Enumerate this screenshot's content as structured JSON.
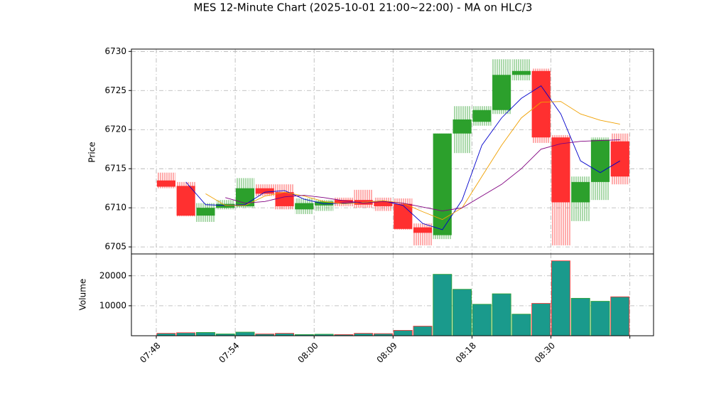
{
  "chart_data": {
    "type": "candlestick",
    "title": "MES 12-Minute Chart (2025-10-01 21:00~22:00) - MA on HLC/3",
    "ylabel": "Price",
    "volume_label": "Volume",
    "up_color": "#2ca02c",
    "down_color": "#ff3030",
    "volume_color": "#1a9a8c",
    "grid": true,
    "open": [
      6713.5,
      6712.8,
      6709.0,
      6710.0,
      6710.2,
      6712.5,
      6712.0,
      6709.8,
      6710.3,
      6711.0,
      6711.0,
      6710.8,
      6710.5,
      6707.5,
      6706.5,
      6719.5,
      6721.0,
      6722.5,
      6727.0,
      6727.5,
      6719.0,
      6710.7,
      6713.3,
      6718.5
    ],
    "high": [
      6714.5,
      6713.3,
      6710.6,
      6711.0,
      6713.8,
      6713.0,
      6713.0,
      6711.2,
      6711.0,
      6711.3,
      6712.3,
      6711.3,
      6711.2,
      6708.0,
      6719.5,
      6723.0,
      6723.0,
      6729.0,
      6729.0,
      6727.8,
      6719.3,
      6714.0,
      6719.0,
      6719.5
    ],
    "low": [
      6712.5,
      6708.9,
      6708.2,
      6709.8,
      6710.0,
      6711.5,
      6709.8,
      6709.2,
      6709.6,
      6710.2,
      6710.0,
      6709.6,
      6707.2,
      6705.2,
      6706.0,
      6717.0,
      6720.5,
      6722.0,
      6726.3,
      6718.3,
      6705.2,
      6708.3,
      6711.0,
      6713.0
    ],
    "close": [
      6712.7,
      6709.0,
      6710.0,
      6710.5,
      6712.5,
      6711.8,
      6710.2,
      6710.6,
      6710.8,
      6710.6,
      6710.4,
      6710.2,
      6707.3,
      6706.8,
      6719.5,
      6721.3,
      6722.5,
      6727.0,
      6727.5,
      6719.0,
      6710.7,
      6713.3,
      6718.7,
      6714.0
    ],
    "volume": [
      800,
      1000,
      1100,
      600,
      1200,
      600,
      800,
      400,
      500,
      400,
      800,
      700,
      1800,
      3200,
      20500,
      15500,
      10500,
      14000,
      7200,
      10800,
      25000,
      12500,
      11500,
      13000
    ],
    "series": [
      {
        "color": "#0000cc",
        "values": [
          null,
          6713.3,
          6710.4,
          6710.3,
          6710.4,
          6712.0,
          6712.2,
          6711.1,
          6710.5,
          6710.6,
          6710.7,
          6710.9,
          6710.3,
          6708.0,
          6707.2,
          6711.0,
          6718.0,
          6721.5,
          6724.0,
          6725.6,
          6722.0,
          6716.0,
          6714.5,
          6716.0
        ]
      },
      {
        "color": "#f0a000",
        "values": [
          null,
          null,
          6711.8,
          6710.3,
          6710.3,
          6711.5,
          6712.0,
          6711.5,
          6710.8,
          6710.5,
          6710.7,
          6710.9,
          6710.6,
          6709.5,
          6708.5,
          6710.0,
          6714.0,
          6718.0,
          6721.5,
          6723.5,
          6723.6,
          6722.0,
          6721.2,
          6720.7
        ]
      },
      {
        "color": "#800080",
        "values": [
          null,
          null,
          null,
          6711.3,
          6710.6,
          6710.8,
          6711.4,
          6711.6,
          6711.3,
          6710.9,
          6710.6,
          6710.8,
          6710.6,
          6710.1,
          6709.6,
          6710.0,
          6711.5,
          6713.0,
          6715.0,
          6717.5,
          6718.2,
          6718.5,
          6718.6,
          6718.7
        ]
      }
    ],
    "xlim": [
      -1.26,
      25.2
    ],
    "xticks": [
      {
        "value": 0,
        "label": "07:48"
      },
      {
        "value": 4,
        "label": "07:54"
      },
      {
        "value": 8,
        "label": "08:00"
      },
      {
        "value": 12,
        "label": "08:09"
      },
      {
        "value": 16,
        "label": "08:18"
      },
      {
        "value": 20,
        "label": "08:30"
      },
      {
        "value": 24,
        "label": null
      }
    ],
    "ylim": [
      6704.1,
      6730.3
    ],
    "yticks": [
      6705,
      6710,
      6715,
      6720,
      6725,
      6730
    ],
    "volume_ylim": [
      0,
      27300
    ],
    "volume_yticks": [
      10000,
      20000
    ]
  }
}
